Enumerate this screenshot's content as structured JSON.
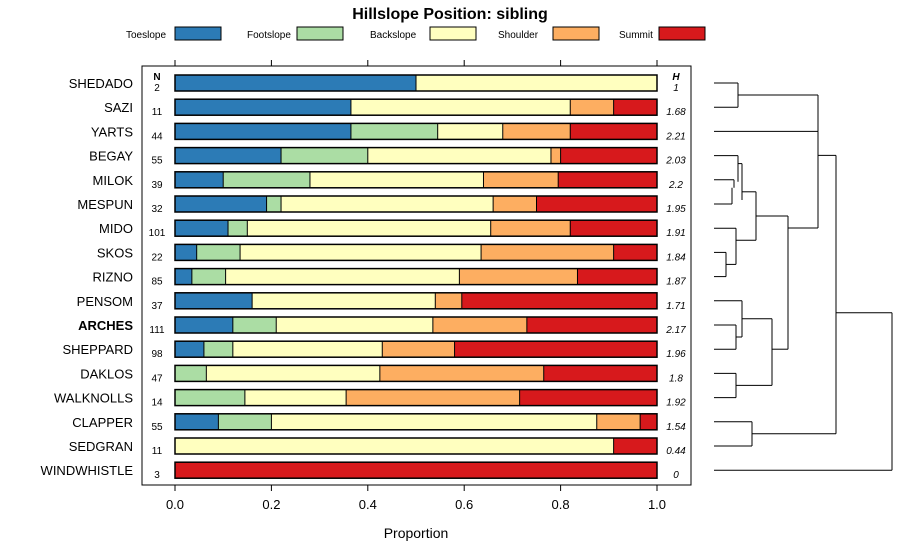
{
  "chart_data": {
    "type": "bar",
    "orientation": "horizontal",
    "stacked": true,
    "title": "Hillslope Position: sibling",
    "xlabel": "Proportion",
    "xlim": [
      0,
      1
    ],
    "x_ticks": [
      "0.0",
      "0.2",
      "0.4",
      "0.6",
      "0.8",
      "1.0"
    ],
    "n_header": "N",
    "h_header": "H",
    "legend_position": "top",
    "series": [
      {
        "name": "Toeslope",
        "color": "#2C7BB6"
      },
      {
        "name": "Footslope",
        "color": "#ABDDA4"
      },
      {
        "name": "Backslope",
        "color": "#FFFFBF"
      },
      {
        "name": "Shoulder",
        "color": "#FDAE61"
      },
      {
        "name": "Summit",
        "color": "#D7191C"
      }
    ],
    "rows": [
      {
        "label": "SHEDADO",
        "bold": false,
        "n": "2",
        "h": "1",
        "values": [
          0.5,
          0.0,
          0.5,
          0.0,
          0.0
        ]
      },
      {
        "label": "SAZI",
        "bold": false,
        "n": "11",
        "h": "1.68",
        "values": [
          0.365,
          0.0,
          0.455,
          0.09,
          0.09
        ]
      },
      {
        "label": "YARTS",
        "bold": false,
        "n": "44",
        "h": "2.21",
        "values": [
          0.365,
          0.18,
          0.135,
          0.14,
          0.18
        ]
      },
      {
        "label": "BEGAY",
        "bold": false,
        "n": "55",
        "h": "2.03",
        "values": [
          0.22,
          0.18,
          0.38,
          0.02,
          0.2
        ]
      },
      {
        "label": "MILOK",
        "bold": false,
        "n": "39",
        "h": "2.2",
        "values": [
          0.1,
          0.18,
          0.36,
          0.155,
          0.205
        ]
      },
      {
        "label": "MESPUN",
        "bold": false,
        "n": "32",
        "h": "1.95",
        "values": [
          0.19,
          0.03,
          0.44,
          0.09,
          0.25
        ]
      },
      {
        "label": "MIDO",
        "bold": false,
        "n": "101",
        "h": "1.91",
        "values": [
          0.11,
          0.04,
          0.505,
          0.165,
          0.18
        ]
      },
      {
        "label": "SKOS",
        "bold": false,
        "n": "22",
        "h": "1.84",
        "values": [
          0.045,
          0.09,
          0.5,
          0.275,
          0.09
        ]
      },
      {
        "label": "RIZNO",
        "bold": false,
        "n": "85",
        "h": "1.87",
        "values": [
          0.035,
          0.07,
          0.485,
          0.245,
          0.165
        ]
      },
      {
        "label": "PENSOM",
        "bold": false,
        "n": "37",
        "h": "1.71",
        "values": [
          0.16,
          0.0,
          0.38,
          0.055,
          0.405
        ]
      },
      {
        "label": "ARCHES",
        "bold": true,
        "n": "111",
        "h": "2.17",
        "values": [
          0.12,
          0.09,
          0.325,
          0.195,
          0.27
        ]
      },
      {
        "label": "SHEPPARD",
        "bold": false,
        "n": "98",
        "h": "1.96",
        "values": [
          0.06,
          0.06,
          0.31,
          0.15,
          0.42
        ]
      },
      {
        "label": "DAKLOS",
        "bold": false,
        "n": "47",
        "h": "1.8",
        "values": [
          0.0,
          0.065,
          0.36,
          0.34,
          0.235
        ]
      },
      {
        "label": "WALKNOLLS",
        "bold": false,
        "n": "14",
        "h": "1.92",
        "values": [
          0.0,
          0.145,
          0.21,
          0.36,
          0.285
        ]
      },
      {
        "label": "CLAPPER",
        "bold": false,
        "n": "55",
        "h": "1.54",
        "values": [
          0.09,
          0.11,
          0.675,
          0.09,
          0.035
        ]
      },
      {
        "label": "SEDGRAN",
        "bold": false,
        "n": "11",
        "h": "0.44",
        "values": [
          0.0,
          0.0,
          0.91,
          0.0,
          0.09
        ]
      },
      {
        "label": "WINDWHISTLE",
        "bold": false,
        "n": "3",
        "h": "0",
        "values": [
          0.0,
          0.0,
          0.0,
          0.0,
          1.0
        ]
      }
    ]
  }
}
